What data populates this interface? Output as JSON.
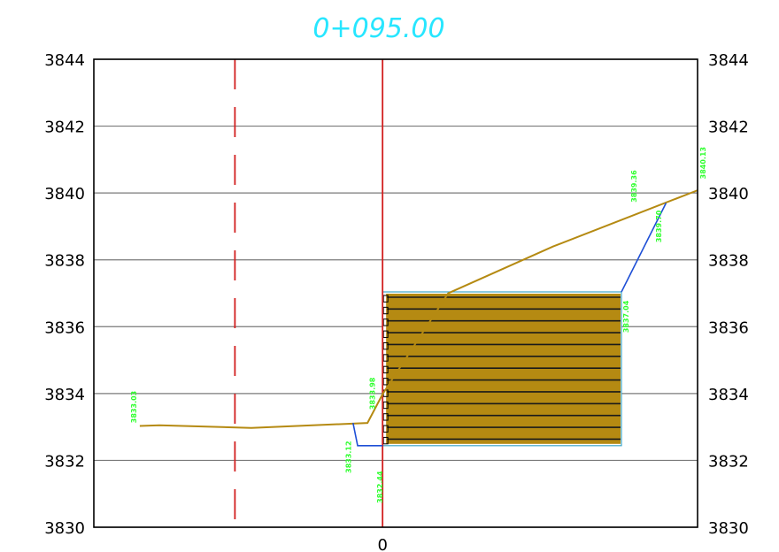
{
  "title": "0+095.00",
  "colors": {
    "title": "#27e6ff",
    "grid": "#7a7a7a",
    "frame": "#000000",
    "centerline": "#d22020",
    "offset_line": "#d22020",
    "ground": "#b58a12",
    "cut_slope": "#1e4fd6",
    "fill_stripe": "#1a1a1a",
    "fill_border": "#3fa7c9",
    "label": "#2dff2d"
  },
  "chart_data": {
    "type": "line",
    "ylim": [
      3830,
      3844
    ],
    "y_ticks": [
      "3830",
      "3832",
      "3834",
      "3836",
      "3838",
      "3840",
      "3842",
      "3844"
    ],
    "x_ticks": [
      "0"
    ],
    "ground_profile": [
      {
        "x": -37,
        "y": 3833.03
      },
      {
        "x": -34,
        "y": 3833.05
      },
      {
        "x": -20,
        "y": 3832.97
      },
      {
        "x": -2.3,
        "y": 3833.12
      },
      {
        "x": 0,
        "y": 3833.98
      },
      {
        "x": 10,
        "y": 3837.0
      },
      {
        "x": 26,
        "y": 3838.4
      },
      {
        "x": 48,
        "y": 3840.08
      }
    ],
    "cut_slope": [
      {
        "x": -4.5,
        "y": 3833.12
      },
      {
        "x": -3.8,
        "y": 3832.44
      },
      {
        "x": 0,
        "y": 3832.44
      }
    ],
    "right_slope": [
      {
        "x": 36.4,
        "y": 3837.04
      },
      {
        "x": 43.2,
        "y": 3839.7
      }
    ],
    "fill_block": {
      "x0": 0,
      "x1": 36.4,
      "y0": 3832.44,
      "y1": 3837.04,
      "layers": 13
    },
    "offset_line_x": -22.5,
    "labels": [
      {
        "text": "3833.03",
        "x": -37.5,
        "y": 3833.6
      },
      {
        "text": "3833.98",
        "x": -1.2,
        "y": 3834.0
      },
      {
        "text": "3833.12",
        "x": -4.8,
        "y": 3832.1
      },
      {
        "text": "3832.44",
        "x": 0,
        "y": 3831.2
      },
      {
        "text": "3837.04",
        "x": 37.5,
        "y": 3836.3
      },
      {
        "text": "3839.70",
        "x": 42.5,
        "y": 3839.0
      },
      {
        "text": "3839.36",
        "x": 38.7,
        "y": 3840.2
      },
      {
        "text": "3840.13",
        "x": 49.2,
        "y": 3840.9
      }
    ]
  }
}
